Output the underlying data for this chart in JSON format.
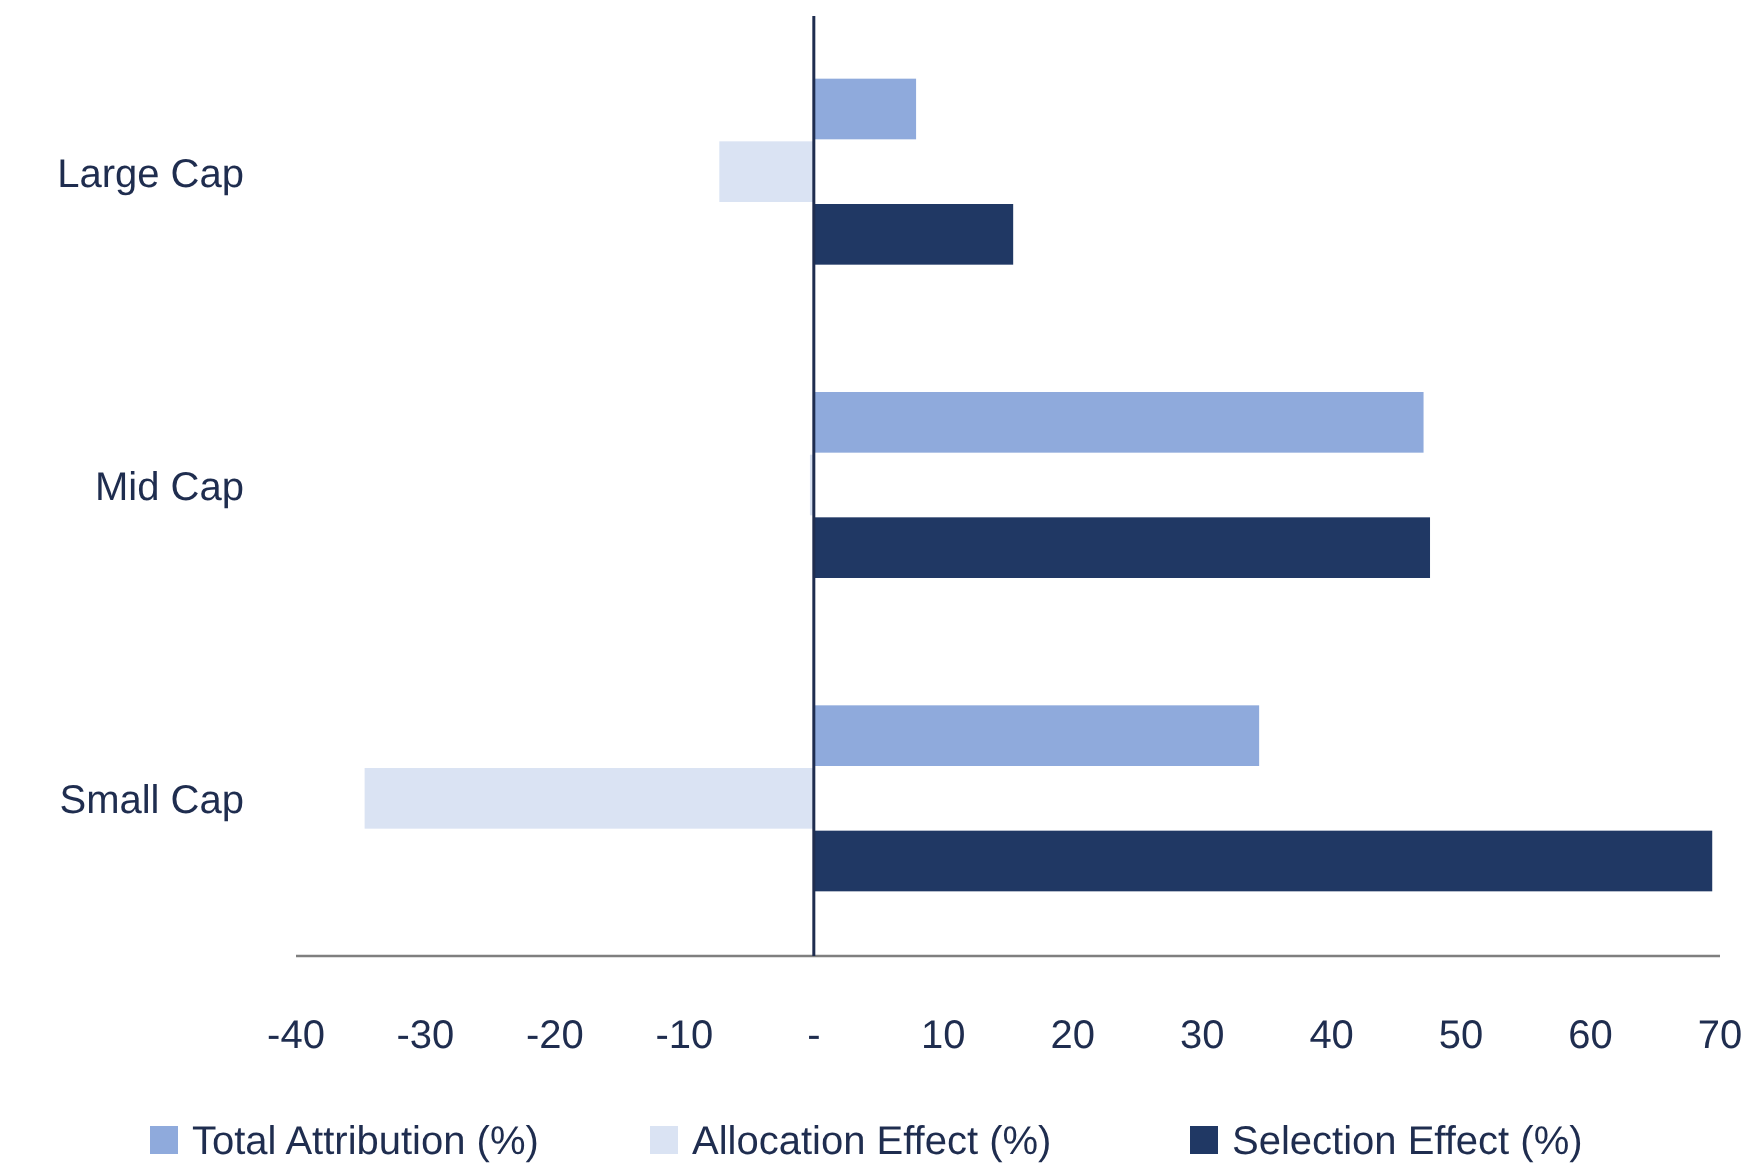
{
  "chart_data": {
    "type": "bar",
    "orientation": "horizontal",
    "categories": [
      "Large Cap",
      "Mid Cap",
      "Small Cap"
    ],
    "series": [
      {
        "name": "Total Attribution (%)",
        "color": "#8faadc",
        "values": [
          7.9,
          47.1,
          34.4
        ]
      },
      {
        "name": "Allocation Effect (%)",
        "color": "#dae3f3",
        "values": [
          -7.3,
          -0.3,
          -34.7
        ]
      },
      {
        "name": "Selection Effect (%)",
        "color": "#203864",
        "values": [
          15.4,
          47.6,
          69.4
        ]
      }
    ],
    "xlim": [
      -40,
      70
    ],
    "xticks": [
      -40,
      -30,
      -20,
      -10,
      {
        "value": 0,
        "label": "-"
      },
      10,
      20,
      30,
      40,
      50,
      60,
      70
    ],
    "grid": false,
    "legend": "bottom"
  }
}
